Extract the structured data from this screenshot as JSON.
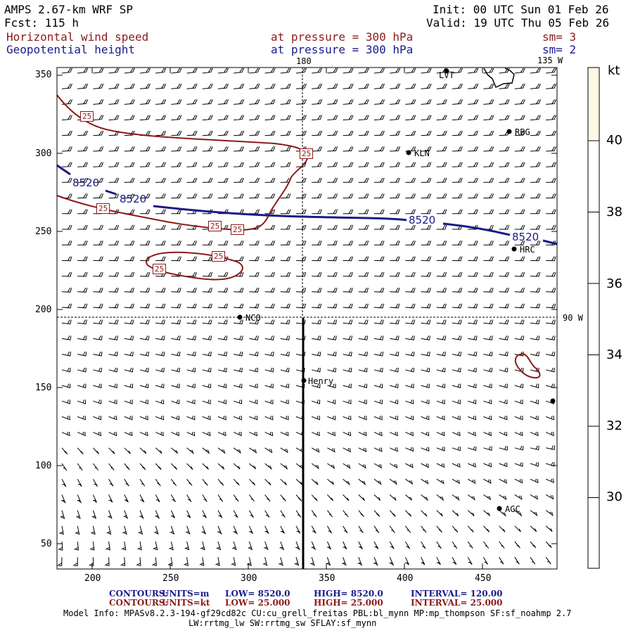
{
  "header": {
    "model": "AMPS 2.67-km WRF SP",
    "init": "Init: 00 UTC Sun 01 Feb 26",
    "fcst": "Fcst:  115 h",
    "valid": "Valid: 19 UTC Thu 05 Feb 26",
    "field1": "Horizontal wind speed",
    "field1_level": "at pressure =  300 hPa",
    "field1_sm": "sm= 3",
    "field2": "Geopotential height",
    "field2_level": "at pressure =  300 hPa",
    "field2_sm": "sm= 2"
  },
  "map_labels": {
    "lon180": "180",
    "lon135w": "135 W",
    "lon90w": "90 W",
    "contour_height": "8520",
    "contour_speed": "25"
  },
  "stations": [
    "LVT",
    "RBG",
    "KLN",
    "HRC",
    "NCO",
    "Henry",
    "AGC"
  ],
  "axes": {
    "x_ticks": [
      "200",
      "250",
      "300",
      "350",
      "400",
      "450"
    ],
    "y_ticks": [
      "350",
      "300",
      "250",
      "200",
      "150",
      "100",
      "50"
    ]
  },
  "colorbar": {
    "unit": "kt",
    "ticks": [
      "40",
      "38",
      "36",
      "34",
      "32",
      "30"
    ],
    "fill_color": "#fdf8e4"
  },
  "footer": {
    "c1_label": "CONTOURS:",
    "c1_units": "UNITS=m",
    "c1_low": "LOW=   8520.0",
    "c1_high": "HIGH=   8520.0",
    "c1_interval": "INTERVAL=    120.00",
    "c2_label": "CONTOURS:",
    "c2_units": "UNITS=kt",
    "c2_low": "LOW=   25.000",
    "c2_high": "HIGH=   25.000",
    "c2_interval": "INTERVAL=    25.000",
    "model_info": "Model Info: MPASv8.2.3-194-gf29cd82c CU:cu_grell_freitas PBL:bl_mynn MP:mp_thompson SF:sf_noahmp 2.7",
    "model_info2": "LW:rrtmg_lw SW:rrtmg_sw SFLAY:sf_mynn"
  },
  "colors": {
    "wind_contour": "#8b1a1a",
    "height_contour": "#1a1a8b",
    "barb": "#000000"
  }
}
